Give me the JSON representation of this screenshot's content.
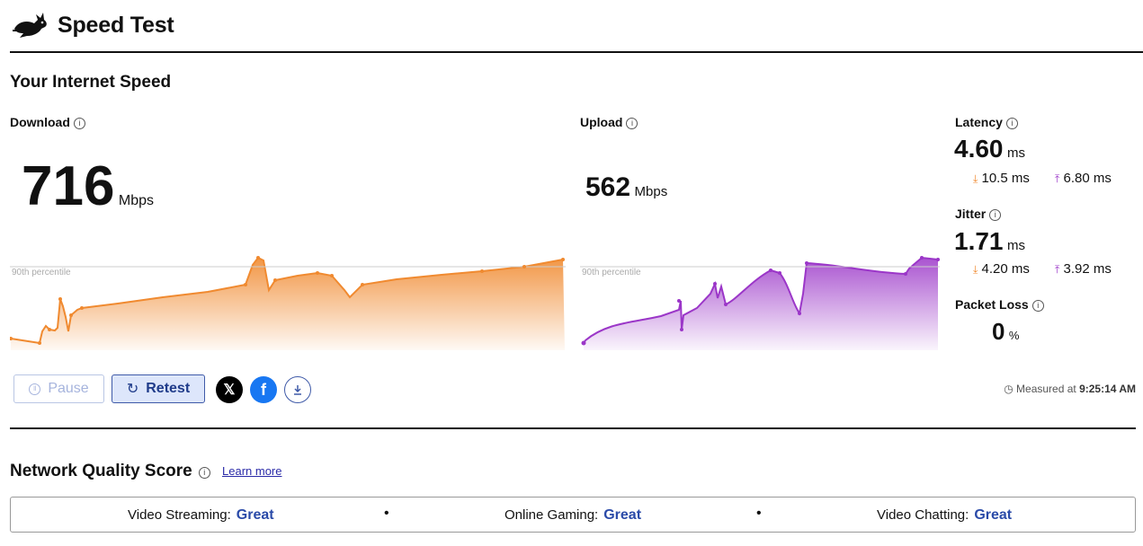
{
  "header": {
    "title": "Speed Test",
    "logo_icon": "rabbit-icon"
  },
  "section": {
    "title": "Your Internet Speed"
  },
  "download": {
    "label": "Download",
    "value": "716",
    "unit": "Mbps",
    "percentile_label": "90th percentile",
    "color": "#f08a30"
  },
  "upload": {
    "label": "Upload",
    "value": "562",
    "unit": "Mbps",
    "percentile_label": "90th percentile",
    "color": "#9b36c8"
  },
  "latency": {
    "label": "Latency",
    "value": "4.60",
    "unit": "ms",
    "down_value": "10.5 ms",
    "up_value": "6.80 ms"
  },
  "jitter": {
    "label": "Jitter",
    "value": "1.71",
    "unit": "ms",
    "down_value": "4.20 ms",
    "up_value": "3.92 ms"
  },
  "packet_loss": {
    "label": "Packet Loss",
    "value": "0",
    "unit": "%"
  },
  "controls": {
    "pause_label": "Pause",
    "retest_label": "Retest",
    "share_x_icon": "x-logo-icon",
    "share_facebook_icon": "facebook-icon",
    "download_icon": "download-icon"
  },
  "measured": {
    "prefix": "Measured at",
    "time": "9:25:14 AM"
  },
  "quality": {
    "title": "Network Quality Score",
    "learn_more": "Learn more",
    "items": [
      {
        "label": "Video Streaming:",
        "value": "Great"
      },
      {
        "label": "Online Gaming:",
        "value": "Great"
      },
      {
        "label": "Video Chatting:",
        "value": "Great"
      }
    ]
  }
}
